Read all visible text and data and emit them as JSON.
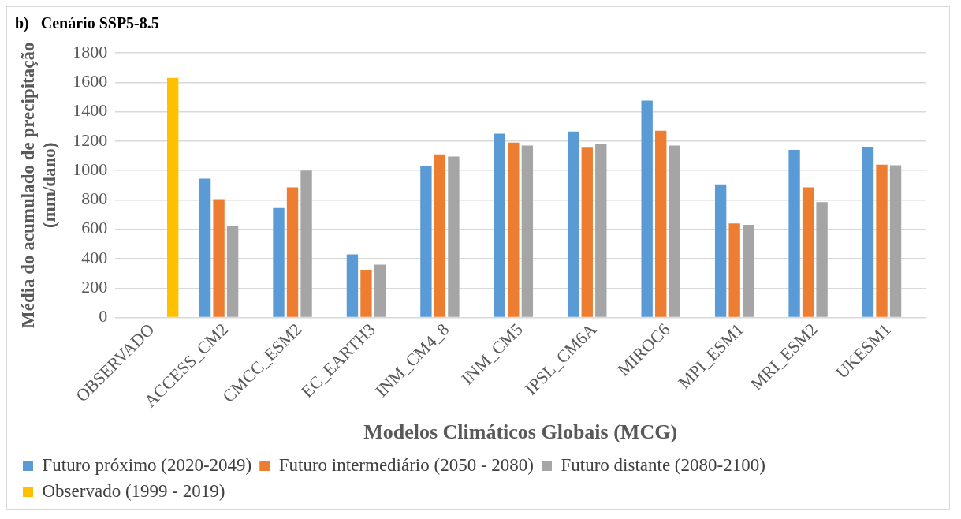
{
  "chart_data": {
    "type": "bar",
    "title": "b)   Cenário SSP5-8.5",
    "xlabel": "Modelos Climáticos Globais (MCG)",
    "ylabel": "Média do acumulado de precipitação (mm/dano)",
    "categories": [
      "OBSERVADO",
      "ACCESS_CM2",
      "CMCC_ESM2",
      "EC_EARTH3",
      "INM_CM4_8",
      "INM_CM5",
      "IPSL_CM6A",
      "MIROC6",
      "MPI_ESM1",
      "MRI_ESM2",
      "UKESM1"
    ],
    "series": [
      {
        "name": "Futuro próximo (2020-2049)",
        "color": "#5b9bd5",
        "values": [
          null,
          945,
          745,
          430,
          1030,
          1250,
          1265,
          1475,
          905,
          1140,
          1160
        ]
      },
      {
        "name": "Futuro intermediário (2050 - 2080)",
        "color": "#ed7d31",
        "values": [
          null,
          805,
          885,
          325,
          1110,
          1190,
          1155,
          1270,
          640,
          885,
          1040
        ]
      },
      {
        "name": "Futuro distante (2080-2100)",
        "color": "#a5a5a5",
        "values": [
          null,
          620,
          1000,
          360,
          1095,
          1170,
          1180,
          1170,
          630,
          785,
          1035
        ]
      },
      {
        "name": "Observado (1999 - 2019)",
        "color": "#ffc000",
        "values": [
          1630,
          null,
          null,
          null,
          null,
          null,
          null,
          null,
          null,
          null,
          null
        ]
      }
    ],
    "ylim": [
      0,
      1800
    ],
    "yticks": [
      0,
      200,
      400,
      600,
      800,
      1000,
      1200,
      1400,
      1600,
      1800
    ],
    "grid": "y",
    "legend": "bottom"
  }
}
